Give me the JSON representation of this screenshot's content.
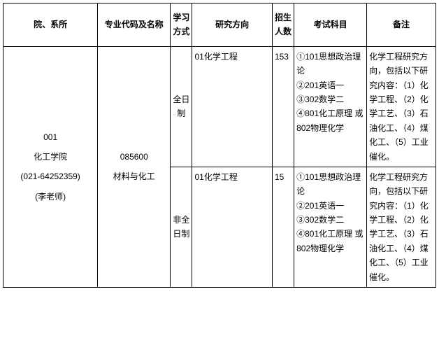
{
  "headers": {
    "department": "院、系所",
    "major": "专业代码及名称",
    "study_mode": "学习方式",
    "direction": "研究方向",
    "count": "招生人数",
    "exam": "考试科目",
    "note": "备注"
  },
  "department": {
    "code": "001",
    "name": "化工学院",
    "phone": "(021-64252359)",
    "teacher": "(李老师)"
  },
  "major": {
    "code": "085600",
    "name": "材料与化工"
  },
  "rows": [
    {
      "study_mode": "全日制",
      "direction": "01化学工程",
      "count": "153",
      "exam": "①101思想政治理论\n②201英语一\n③302数学二\n④801化工原理 或802物理化学",
      "note": "化学工程研究方向，包括以下研究内容：（1）化学工程、（2）化学工艺、（3）石油化工、（4）煤化工、（5）工业催化。"
    },
    {
      "study_mode": "非全日制",
      "direction": "01化学工程",
      "count": "15",
      "exam": "①101思想政治理论\n②201英语一\n③302数学二\n④801化工原理 或802物理化学",
      "note": "化学工程研究方向，包括以下研究内容：（1）化学工程、（2）化学工艺、（3）石油化工、（4）煤化工、（5）工业催化。"
    }
  ]
}
